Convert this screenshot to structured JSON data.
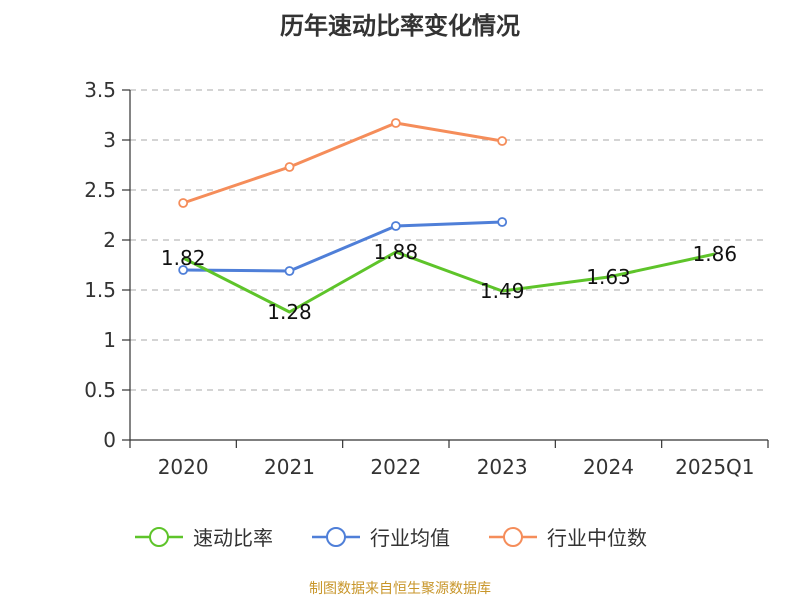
{
  "chart_data": {
    "type": "line",
    "title": "历年速动比率变化情况",
    "categories": [
      "2020",
      "2021",
      "2022",
      "2023",
      "2024",
      "2025Q1"
    ],
    "ylim": [
      0,
      3.5
    ],
    "yticks": [
      "0",
      "0.5",
      "1",
      "1.5",
      "2",
      "2.5",
      "3",
      "3.5"
    ],
    "grid": true,
    "legend_position": "bottom",
    "series": [
      {
        "name": "速动比率",
        "color": "#5ec42a",
        "values": [
          1.82,
          1.28,
          1.88,
          1.49,
          1.63,
          1.86
        ],
        "labels": [
          "1.82",
          "1.28",
          "1.88",
          "1.49",
          "1.63",
          "1.86"
        ],
        "show_markers": false
      },
      {
        "name": "行业均值",
        "color": "#4f7fd8",
        "values": [
          1.7,
          1.69,
          2.14,
          2.18,
          null,
          null
        ],
        "show_markers": true
      },
      {
        "name": "行业中位数",
        "color": "#f58d5a",
        "values": [
          2.37,
          2.73,
          3.17,
          2.99,
          null,
          null
        ],
        "show_markers": true
      }
    ]
  },
  "source": "制图数据来自恒生聚源数据库"
}
